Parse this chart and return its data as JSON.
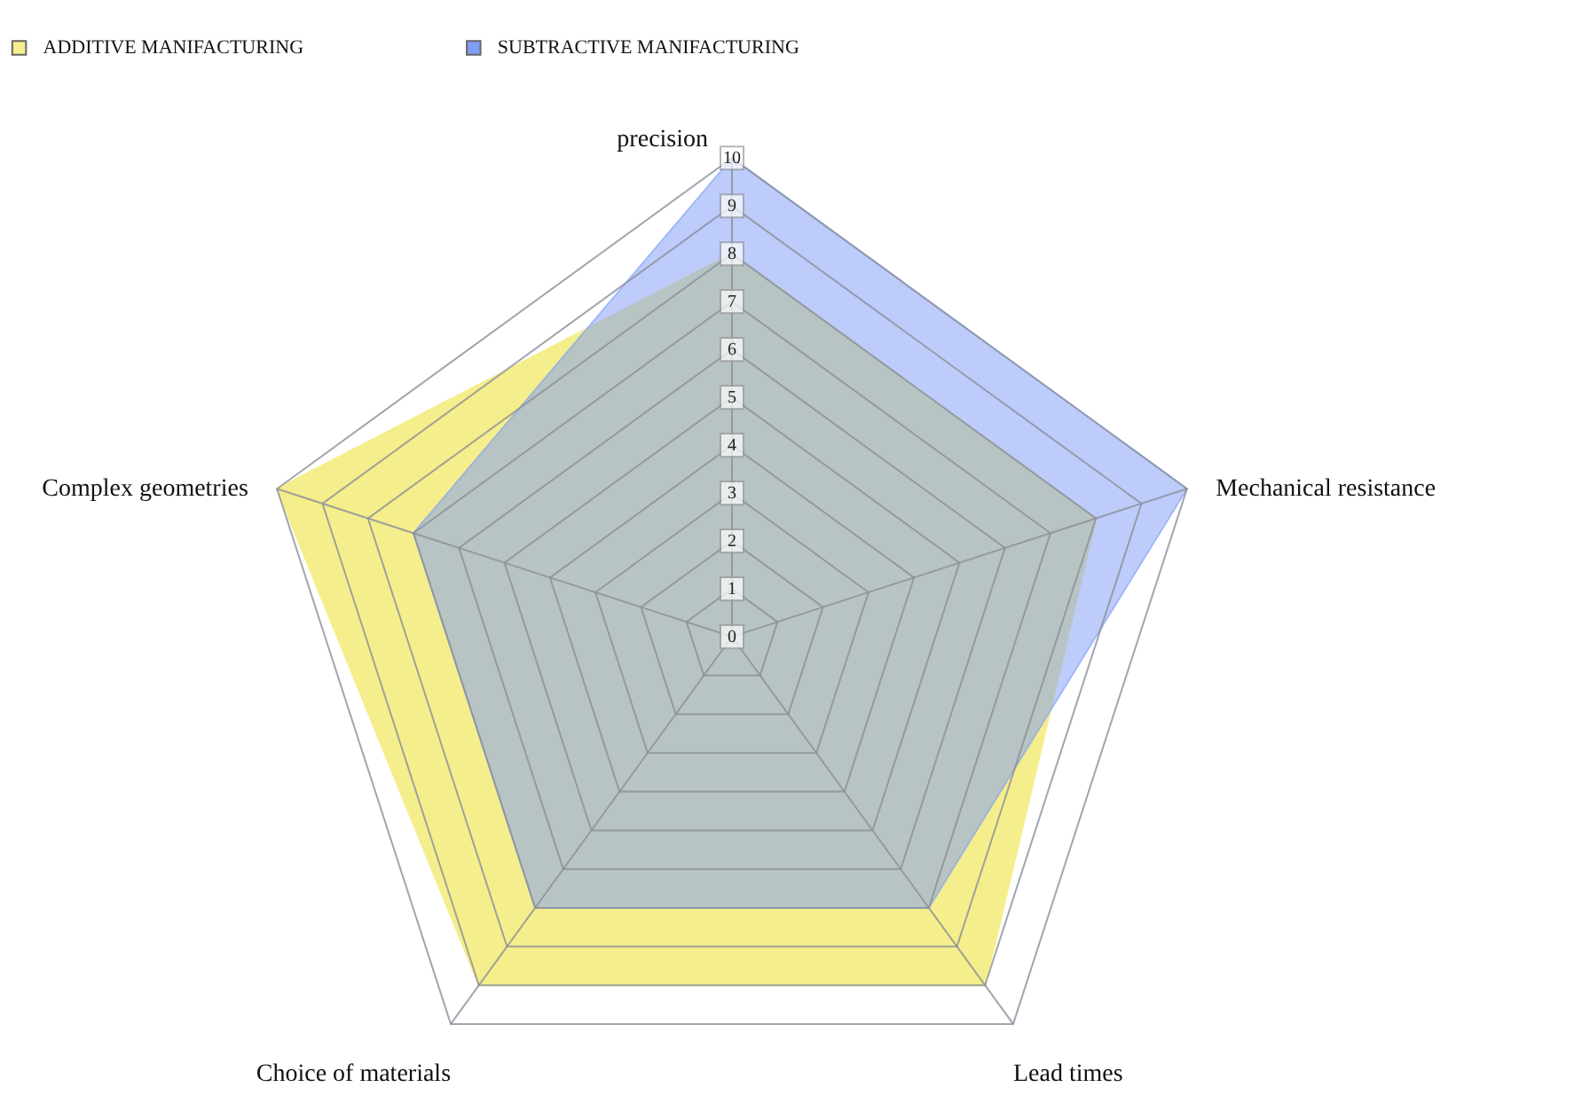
{
  "chart_data": {
    "type": "radar",
    "categories": [
      "precision",
      "Mechanical resistance",
      "Lead times",
      "Choice of materials",
      "Complex geometries"
    ],
    "series": [
      {
        "name": "ADDITIVE MANIFACTURING",
        "color": "#f5ee8c",
        "values": [
          8,
          8,
          9,
          9,
          10
        ]
      },
      {
        "name": "SUBTRACTIVE MANIFACTURING",
        "color": "#7f9ef5",
        "values": [
          10,
          10,
          7,
          7,
          7
        ]
      }
    ],
    "ylim": [
      0,
      10
    ],
    "yticks": [
      0,
      1,
      2,
      3,
      4,
      5,
      6,
      7,
      8,
      9,
      10
    ],
    "legend": "top left",
    "grid": true
  }
}
